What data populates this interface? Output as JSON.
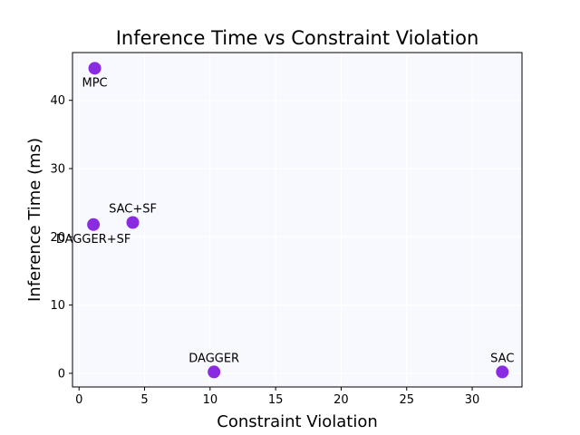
{
  "chart_data": {
    "type": "scatter",
    "title": "Inference Time vs Constraint Violation",
    "xlabel": "Constraint Violation",
    "ylabel": "Inference Time (ms)",
    "xlim": [
      -0.5,
      33.8
    ],
    "ylim": [
      -2.0,
      47.0
    ],
    "xticks": [
      0,
      5,
      10,
      15,
      20,
      25,
      30
    ],
    "yticks": [
      0,
      10,
      20,
      30,
      40
    ],
    "grid": true,
    "marker_color": "#8a2be2",
    "background_color": "#f8f8ff",
    "points": [
      {
        "label": "MPC",
        "x": 1.2,
        "y": 44.7,
        "label_pos": "below"
      },
      {
        "label": "SAC+SF",
        "x": 4.1,
        "y": 22.1,
        "label_pos": "above"
      },
      {
        "label": "DAGGER+SF",
        "x": 1.1,
        "y": 21.8,
        "label_pos": "below"
      },
      {
        "label": "DAGGER",
        "x": 10.3,
        "y": 0.2,
        "label_pos": "above"
      },
      {
        "label": "SAC",
        "x": 32.3,
        "y": 0.2,
        "label_pos": "above"
      }
    ]
  }
}
